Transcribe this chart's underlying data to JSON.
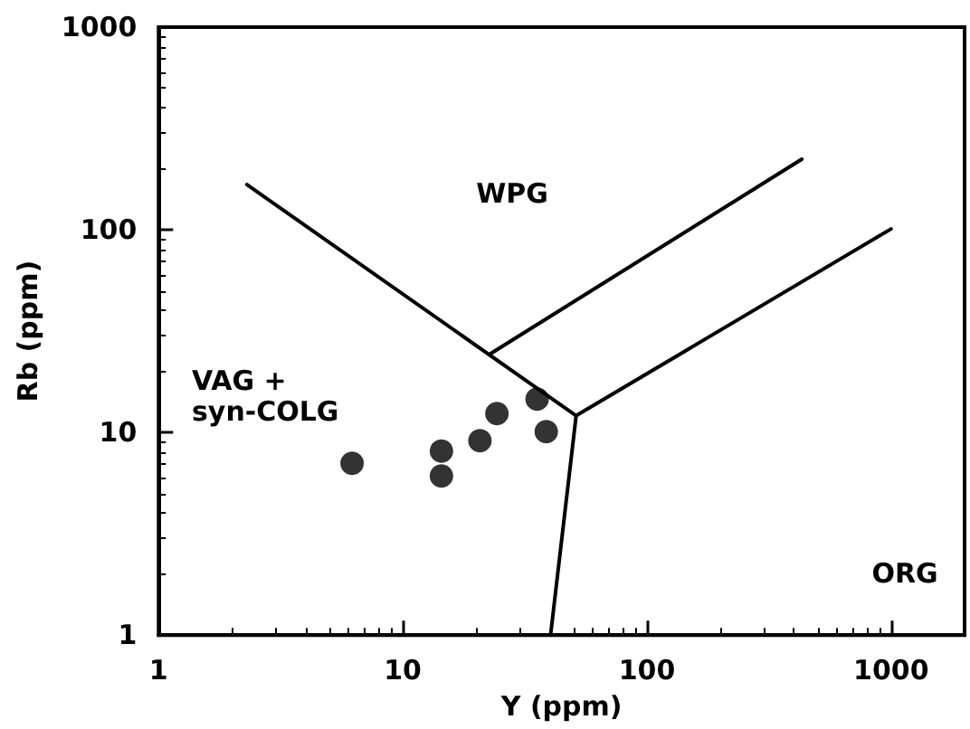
{
  "chart_data": {
    "type": "scatter",
    "xlabel": "Y (ppm)",
    "ylabel": "Rb (ppm)",
    "log": "xy",
    "grid": false,
    "marker": "circle",
    "xlim": [
      1,
      2000
    ],
    "xticks": [
      1,
      10,
      100,
      1000
    ],
    "ylim": [
      1,
      1000
    ],
    "yticks": [
      1,
      10,
      100,
      1000
    ],
    "series": [
      {
        "color": "#000000",
        "x": [
          6.2,
          14.4,
          14.4,
          20.7,
          24.3,
          35.5,
          38.7
        ],
        "values": [
          7.05,
          8.1,
          6.1,
          9.1,
          12.4,
          14.6,
          10.1
        ]
      },
      {
        "type": "line",
        "color": "#000000",
        "marker": "none",
        "x": [
          2.3,
          51.3
        ],
        "values": [
          167,
          12.1
        ]
      },
      {
        "type": "line",
        "color": "#000000",
        "marker": "none",
        "x": [
          51.3,
          40.3
        ],
        "values": [
          12.1,
          1
        ]
      },
      {
        "type": "line",
        "color": "#000000",
        "marker": "none",
        "x": [
          51.3,
          1000
        ],
        "values": [
          12.1,
          101
        ]
      },
      {
        "type": "line",
        "color": "#000000",
        "marker": "none",
        "x": [
          22.9,
          431
        ],
        "values": [
          24.5,
          223
        ]
      }
    ],
    "annotations": [
      "WPG",
      "VAG +\nsyn-COLG",
      "ORG"
    ]
  }
}
